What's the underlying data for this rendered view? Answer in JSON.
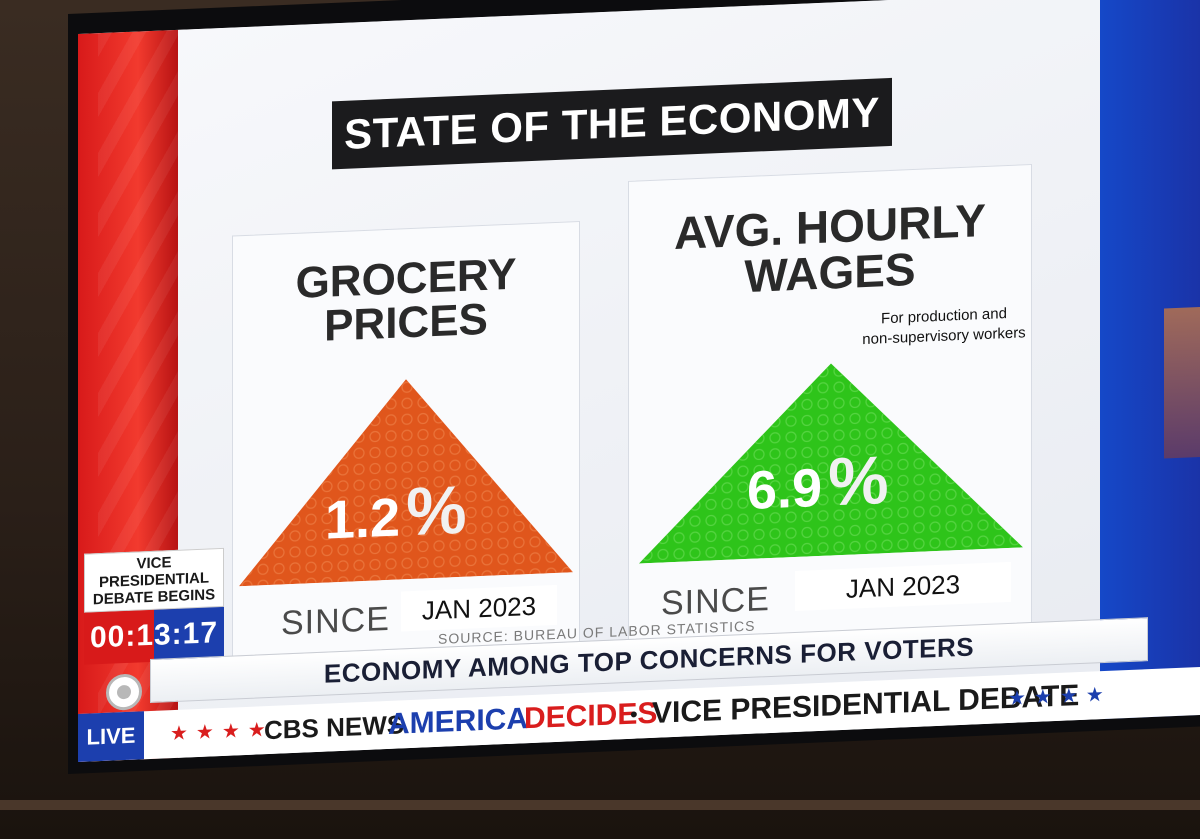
{
  "graphic": {
    "title": "STATE OF THE ECONOMY",
    "cards": [
      {
        "title_line1": "GROCERY",
        "title_line2": "PRICES",
        "value": "1.2",
        "unit": "%",
        "since_label": "SINCE",
        "since_date": "JAN 2023",
        "color": "#e0561c"
      },
      {
        "title_line1": "AVG. HOURLY",
        "title_line2": "WAGES",
        "note_line1": "For production and",
        "note_line2": "non-supervisory workers",
        "value": "6.9",
        "unit": "%",
        "since_label": "SINCE",
        "since_date": "JAN 2023",
        "color": "#2ec41a"
      }
    ],
    "source": "SOURCE: BUREAU OF LABOR STATISTICS"
  },
  "countdown": {
    "label_line1": "VICE PRESIDENTIAL",
    "label_line2": "DEBATE BEGINS",
    "time": "00:13:17"
  },
  "lower_third": {
    "headline": "ECONOMY AMONG TOP CONCERNS FOR VOTERS"
  },
  "ticker": {
    "live_label": "LIVE",
    "stars_left": "★★★★",
    "network": "CBS NEWS",
    "show_part1": "AMERICA",
    "show_part2": "DECIDES",
    "separator": "•",
    "event": "VICE PRESIDENTIAL DEBATE",
    "stars_right": "★★★★"
  }
}
